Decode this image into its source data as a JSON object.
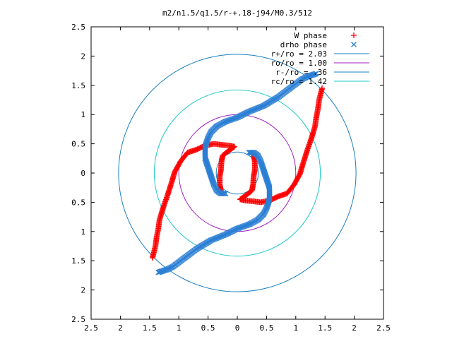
{
  "chart_data": {
    "type": "scatter",
    "title": "m2/n1.5/q1.5/r-+.18-j94/M0.3/512",
    "xlabel": "",
    "ylabel": "",
    "xlim": [
      -2.5,
      2.5
    ],
    "ylim": [
      -2.5,
      2.5
    ],
    "x_ticks": [
      "2.5",
      "2",
      "1.5",
      "1",
      "0.5",
      "0",
      "0.5",
      "1",
      "1.5",
      "2",
      "2.5"
    ],
    "y_ticks": [
      "2.5",
      "2",
      "1.5",
      "1",
      "0.5",
      "0",
      "0.5",
      "1",
      "1.5",
      "2",
      "2.5"
    ],
    "grid": false,
    "legend_position": "top-right",
    "series": [
      {
        "name": "W phase",
        "marker": "plus",
        "color": "#ff0000",
        "segments": [
          [
            [
              0.25,
              0.35
            ],
            [
              0.28,
              0.3
            ],
            [
              0.3,
              0.2
            ],
            [
              0.3,
              0.05
            ],
            [
              0.28,
              -0.05
            ],
            [
              0.27,
              -0.2
            ],
            [
              0.25,
              -0.3
            ],
            [
              0.15,
              -0.38
            ],
            [
              0.05,
              -0.45
            ]
          ],
          [
            [
              -0.05,
              0.45
            ],
            [
              -0.12,
              0.47
            ],
            [
              -0.25,
              0.48
            ],
            [
              -0.4,
              0.5
            ],
            [
              -0.55,
              0.47
            ],
            [
              -0.7,
              0.4
            ],
            [
              -0.85,
              0.35
            ],
            [
              -0.97,
              0.2
            ],
            [
              -1.07,
              0.02
            ],
            [
              -1.12,
              -0.15
            ],
            [
              -1.2,
              -0.4
            ],
            [
              -1.27,
              -0.6
            ],
            [
              -1.33,
              -0.8
            ],
            [
              -1.35,
              -0.95
            ],
            [
              -1.38,
              -1.1
            ],
            [
              -1.4,
              -1.25
            ],
            [
              -1.45,
              -1.45
            ]
          ],
          [
            [
              -0.25,
              -0.35
            ],
            [
              -0.28,
              -0.3
            ],
            [
              -0.3,
              -0.2
            ],
            [
              -0.3,
              -0.05
            ],
            [
              -0.28,
              0.05
            ],
            [
              -0.27,
              0.2
            ],
            [
              -0.25,
              0.3
            ],
            [
              -0.15,
              0.38
            ],
            [
              -0.05,
              0.45
            ]
          ],
          [
            [
              0.05,
              -0.45
            ],
            [
              0.12,
              -0.47
            ],
            [
              0.25,
              -0.48
            ],
            [
              0.4,
              -0.5
            ],
            [
              0.55,
              -0.47
            ],
            [
              0.7,
              -0.4
            ],
            [
              0.85,
              -0.35
            ],
            [
              0.97,
              -0.2
            ],
            [
              1.07,
              -0.02
            ],
            [
              1.12,
              0.15
            ],
            [
              1.2,
              0.4
            ],
            [
              1.27,
              0.6
            ],
            [
              1.33,
              0.8
            ],
            [
              1.35,
              0.95
            ],
            [
              1.38,
              1.1
            ],
            [
              1.4,
              1.25
            ],
            [
              1.45,
              1.45
            ]
          ]
        ]
      },
      {
        "name": "drho phase",
        "marker": "cross",
        "color": "#2b7fd4",
        "segments": [
          [
            [
              0.2,
              0.35
            ],
            [
              0.28,
              0.35
            ],
            [
              0.35,
              0.3
            ],
            [
              0.4,
              0.2
            ],
            [
              0.45,
              0.05
            ],
            [
              0.5,
              -0.1
            ],
            [
              0.55,
              -0.25
            ],
            [
              0.55,
              -0.35
            ],
            [
              0.55,
              -0.45
            ],
            [
              0.5,
              -0.6
            ],
            [
              0.45,
              -0.7
            ],
            [
              0.35,
              -0.8
            ],
            [
              0.2,
              -0.88
            ],
            [
              0.0,
              -0.95
            ],
            [
              -0.2,
              -1.05
            ],
            [
              -0.45,
              -1.15
            ],
            [
              -0.7,
              -1.3
            ],
            [
              -0.9,
              -1.45
            ],
            [
              -1.1,
              -1.6
            ],
            [
              -1.2,
              -1.65
            ],
            [
              -1.35,
              -1.7
            ]
          ],
          [
            [
              -0.2,
              -0.35
            ],
            [
              -0.28,
              -0.35
            ],
            [
              -0.35,
              -0.3
            ],
            [
              -0.4,
              -0.2
            ],
            [
              -0.45,
              -0.05
            ],
            [
              -0.5,
              0.1
            ],
            [
              -0.55,
              0.25
            ],
            [
              -0.55,
              0.35
            ],
            [
              -0.55,
              0.45
            ],
            [
              -0.5,
              0.6
            ],
            [
              -0.45,
              0.7
            ],
            [
              -0.35,
              0.8
            ],
            [
              -0.2,
              0.88
            ],
            [
              0.0,
              0.95
            ],
            [
              0.2,
              1.05
            ],
            [
              0.45,
              1.15
            ],
            [
              0.7,
              1.3
            ],
            [
              0.9,
              1.45
            ],
            [
              1.1,
              1.6
            ],
            [
              1.2,
              1.65
            ],
            [
              1.35,
              1.7
            ]
          ]
        ]
      },
      {
        "name": "r+/ro = 2.03",
        "type": "circle",
        "radius": 2.03,
        "color": "#1a7fbf"
      },
      {
        "name": "ro/ro = 1.00",
        "type": "circle",
        "radius": 1.0,
        "color": "#a020c0"
      },
      {
        "name": "r-/ro = .36",
        "type": "circle",
        "radius": 0.36,
        "color": "#1a7fbf"
      },
      {
        "name": "rc/ro = 1.42",
        "type": "circle",
        "radius": 1.42,
        "color": "#1ac8c8"
      }
    ]
  }
}
